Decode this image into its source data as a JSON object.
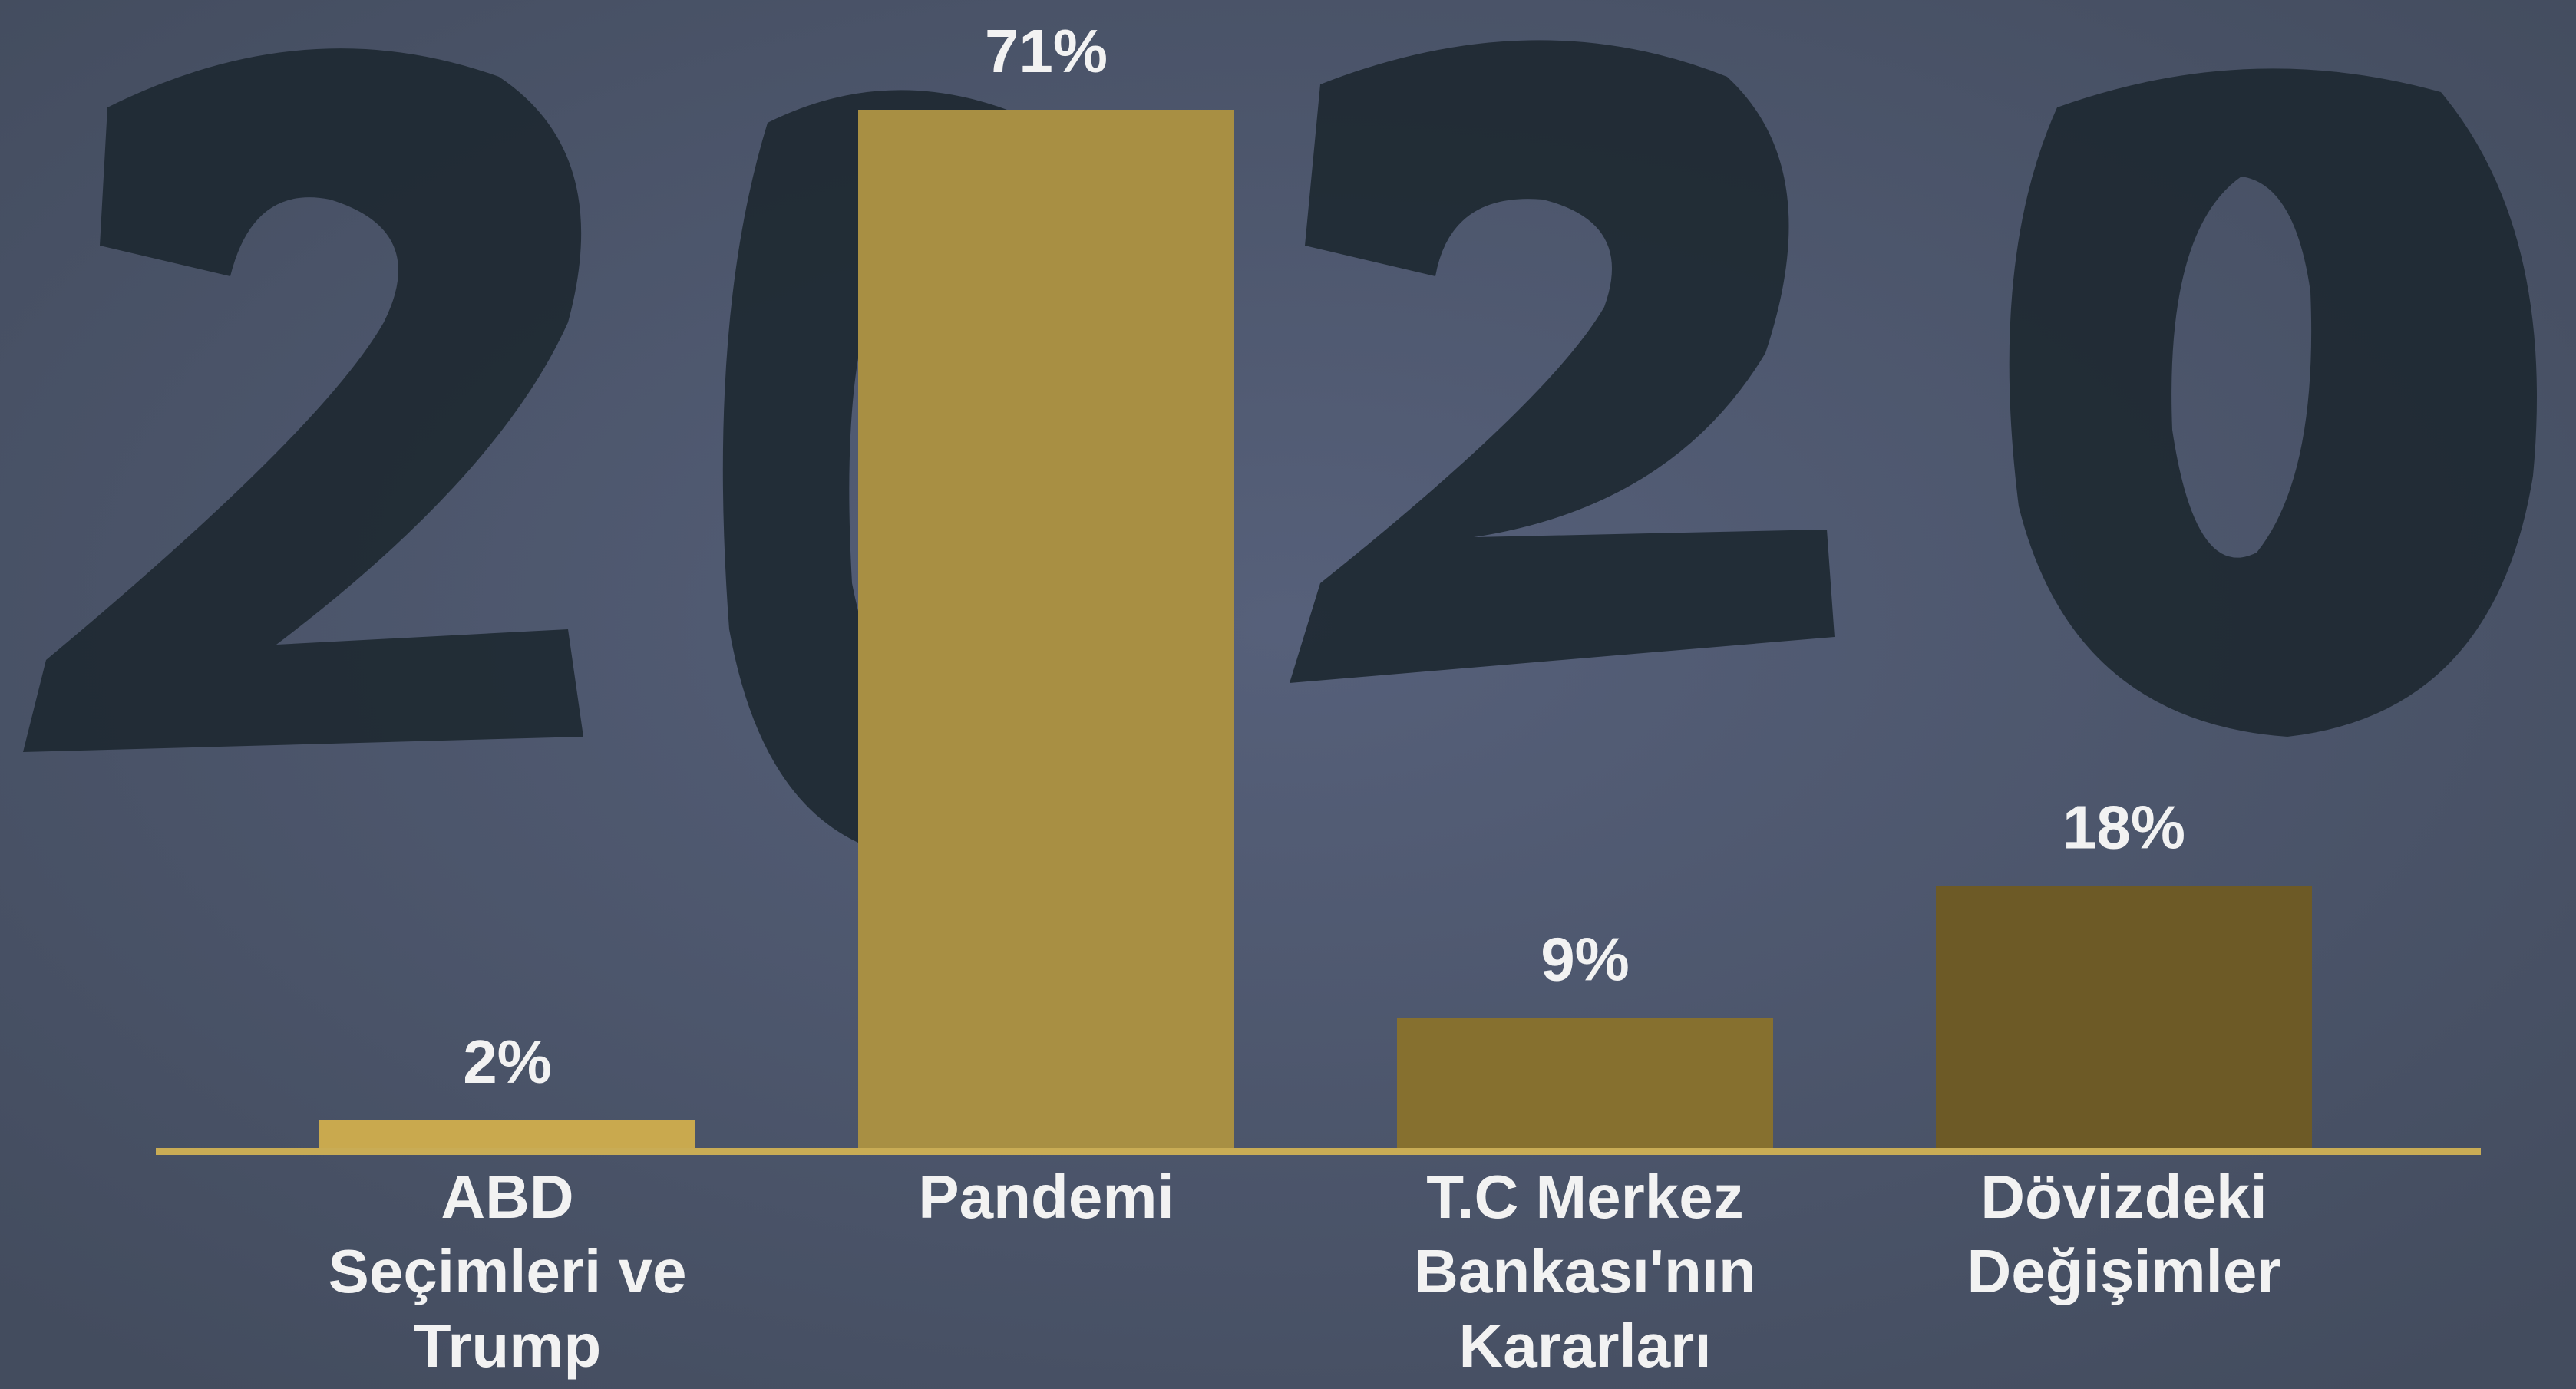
{
  "chart_data": {
    "type": "bar",
    "categories": [
      [
        "ABD",
        "Seçimleri ve",
        "Trump"
      ],
      [
        "Pandemi"
      ],
      [
        "T.C Merkez",
        "Bankası'nın",
        "Kararları"
      ],
      [
        "Dövizdeki",
        "Değişimler"
      ]
    ],
    "values": [
      2,
      71,
      9,
      18
    ],
    "value_labels": [
      "2%",
      "71%",
      "9%",
      "18%"
    ],
    "colors": [
      "#c9a94e",
      "#a88f43",
      "#86702f",
      "#6d5a26"
    ],
    "baseline_color": "#c9ac55"
  }
}
